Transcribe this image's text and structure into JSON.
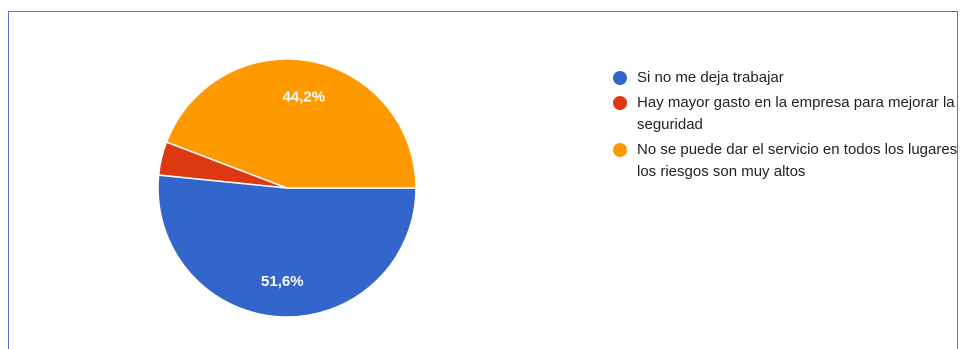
{
  "chart_data": {
    "type": "pie",
    "slices": [
      {
        "label": "Si no me deja trabajar",
        "value": 51.6,
        "display": "51,6%",
        "color": "#3366cc"
      },
      {
        "label": "Hay mayor gasto en la empresa para mejorar la seguridad",
        "value": 4.2,
        "display": "",
        "color": "#dc3912"
      },
      {
        "label": "No se puede dar el servicio en todos los lugares los riesgos son muy altos",
        "value": 44.2,
        "display": "44,2%",
        "color": "#ff9900"
      }
    ],
    "legend_position": "right"
  }
}
